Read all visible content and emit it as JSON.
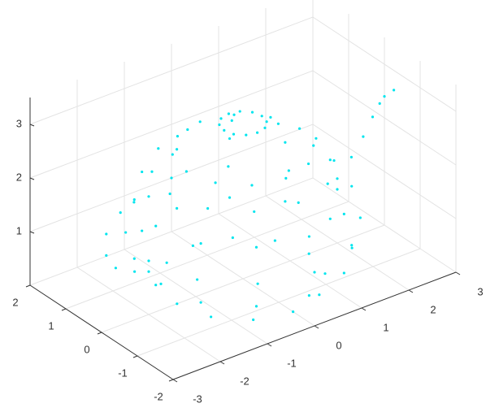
{
  "chart_data": {
    "type": "scatter3d",
    "color": "#00e5ee",
    "grid": true,
    "xlim": [
      -3,
      3
    ],
    "ylim": [
      -2,
      2
    ],
    "zlim": [
      0,
      3.5
    ],
    "xticks": [
      -3,
      -2,
      -1,
      0,
      1,
      2,
      3
    ],
    "yticks": [
      -2,
      -1,
      0,
      1,
      2
    ],
    "zticks": [
      1,
      2,
      3
    ],
    "x": [
      1.4,
      1.21,
      0.7,
      0,
      -0.7,
      -1.21,
      -1.4,
      -1.21,
      -0.7,
      0,
      0.7,
      1.21,
      1.85,
      1.6,
      0.93,
      0,
      -0.93,
      -1.6,
      -1.85,
      -1.6,
      -0.93,
      0,
      0.93,
      1.6,
      2,
      1.73,
      1,
      0,
      -1,
      -1.73,
      -2,
      -1.73,
      -1,
      0,
      1,
      1.73,
      1.85,
      1.6,
      0.93,
      0,
      -0.93,
      -1.6,
      -1.85,
      -1.6,
      -0.93,
      0,
      0.93,
      1.6,
      1.55,
      1.34,
      0.78,
      0,
      -0.78,
      -1.34,
      -1.55,
      -1.34,
      -0.78,
      0,
      0.78,
      1.34,
      1.2,
      1.04,
      0.6,
      0,
      -0.6,
      -1.04,
      -1.2,
      -1.04,
      -0.6,
      0,
      0.6,
      1.04,
      0.4,
      0.35,
      0.2,
      0,
      -0.2,
      -0.35,
      -0.4,
      -0.35,
      -0.2,
      0,
      0.2,
      0.35,
      2.0,
      2.3,
      2.55,
      2.75,
      2.9,
      3.0,
      3.2,
      -2.0,
      -2.6,
      -2.9,
      -2.9,
      -2.7,
      -2.3,
      -2.0
    ],
    "y": [
      0,
      0.7,
      1.21,
      1.4,
      1.21,
      0.7,
      0,
      -0.7,
      -1.21,
      -1.4,
      -1.21,
      -0.7,
      0,
      0.93,
      1.6,
      1.85,
      1.6,
      0.93,
      0,
      -0.93,
      -1.6,
      -1.85,
      -1.6,
      -0.93,
      0,
      1,
      1.73,
      2,
      1.73,
      1,
      0,
      -1,
      -1.73,
      -2,
      -1.73,
      -1,
      0,
      0.93,
      1.6,
      1.85,
      1.6,
      0.93,
      0,
      -0.93,
      -1.6,
      -1.85,
      -1.6,
      -0.93,
      0,
      0.78,
      1.34,
      1.55,
      1.34,
      0.78,
      0,
      -0.78,
      -1.34,
      -1.55,
      -1.34,
      -0.78,
      0,
      0.6,
      1.04,
      1.2,
      1.04,
      0.6,
      0,
      -0.6,
      -1.04,
      -1.2,
      -1.04,
      -0.6,
      0,
      0.2,
      0.35,
      0.4,
      0.35,
      0.2,
      0,
      -0.2,
      -0.35,
      -0.4,
      -0.35,
      -0.2,
      0,
      0,
      0,
      0,
      0,
      0,
      0,
      0,
      0,
      0,
      0,
      0,
      0,
      0
    ],
    "z": [
      0,
      0,
      0,
      0,
      0,
      0,
      0,
      0,
      0,
      0,
      0,
      0,
      0.5,
      0.5,
      0.5,
      0.5,
      0.5,
      0.5,
      0.5,
      0.5,
      0.5,
      0.5,
      0.5,
      0.5,
      1,
      1,
      1,
      1,
      1,
      1,
      1,
      1,
      1,
      1,
      1,
      1,
      1.6,
      1.6,
      1.6,
      1.6,
      1.6,
      1.6,
      1.6,
      1.6,
      1.6,
      1.6,
      1.6,
      1.6,
      2.1,
      2.1,
      2.1,
      2.1,
      2.1,
      2.1,
      2.1,
      2.1,
      2.1,
      2.1,
      2.1,
      2.1,
      2.4,
      2.4,
      2.4,
      2.4,
      2.4,
      2.4,
      2.4,
      2.4,
      2.4,
      2.4,
      2.4,
      2.4,
      2.9,
      2.9,
      2.9,
      2.9,
      2.9,
      2.9,
      2.9,
      2.9,
      2.9,
      2.9,
      2.9,
      2.9,
      1.2,
      1.5,
      1.8,
      2.1,
      2.3,
      2.4,
      2.45,
      2.2,
      2.1,
      1.8,
      1.4,
      1.1,
      0.9,
      0.8
    ]
  }
}
